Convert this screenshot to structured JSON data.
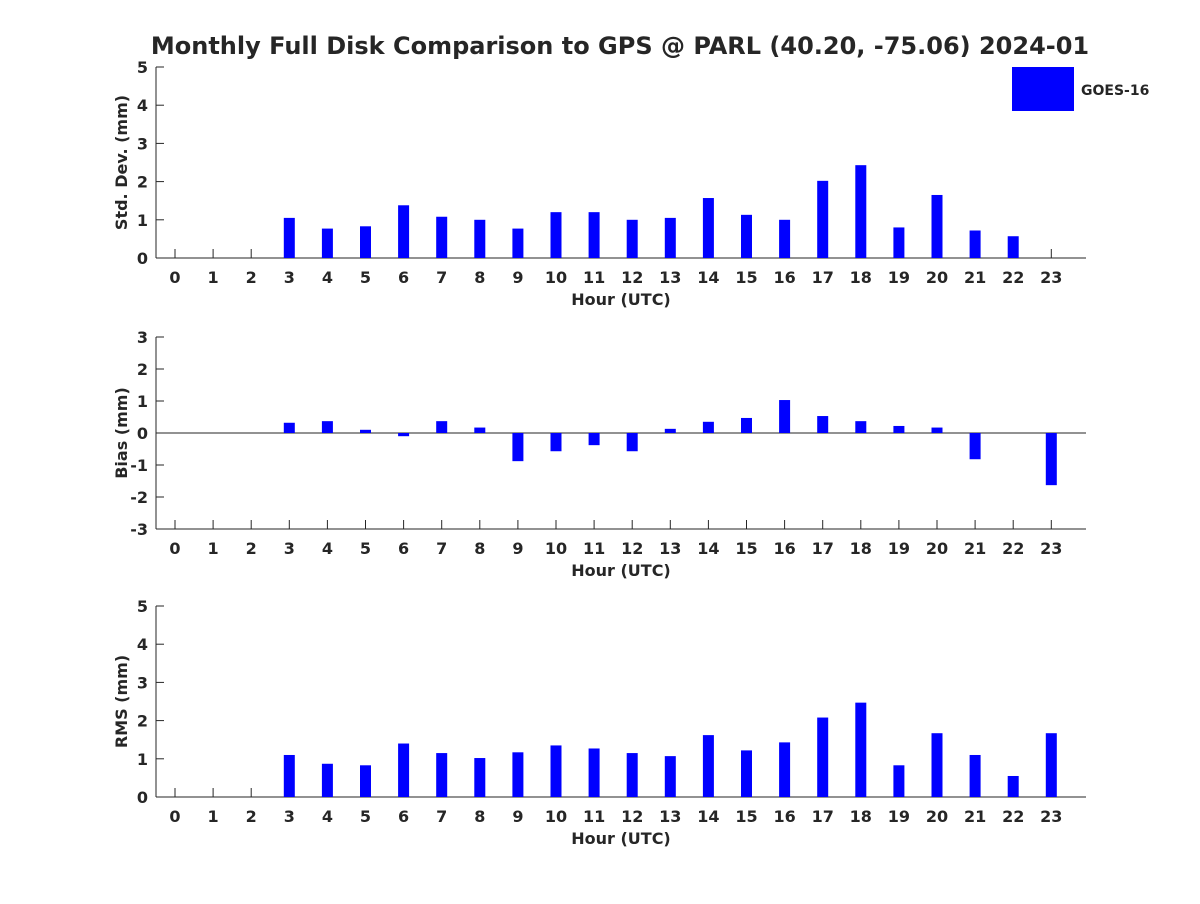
{
  "title": "Monthly Full Disk Comparison to GPS @ PARL (40.20, -75.06) 2024-01",
  "legend": {
    "label": "GOES-16",
    "color": "#0000ff",
    "placement": "top-right"
  },
  "chart_data": [
    {
      "type": "bar",
      "xlabel": "Hour (UTC)",
      "ylabel": "Std. Dev. (mm)",
      "categories": [
        "0",
        "1",
        "2",
        "3",
        "4",
        "5",
        "6",
        "7",
        "8",
        "9",
        "10",
        "11",
        "12",
        "13",
        "14",
        "15",
        "16",
        "17",
        "18",
        "19",
        "20",
        "21",
        "22",
        "23"
      ],
      "ylim": [
        0,
        5
      ],
      "yticks": [
        "0",
        "1",
        "2",
        "3",
        "4",
        "5"
      ],
      "series": [
        {
          "name": "GOES-16",
          "color": "#0000ff",
          "values": [
            null,
            null,
            null,
            1.05,
            0.77,
            0.83,
            1.38,
            1.08,
            1.0,
            0.77,
            1.2,
            1.2,
            1.0,
            1.05,
            1.57,
            1.13,
            1.0,
            2.02,
            2.43,
            0.8,
            1.65,
            0.72,
            0.57,
            null
          ]
        }
      ]
    },
    {
      "type": "bar",
      "xlabel": "Hour (UTC)",
      "ylabel": "Bias (mm)",
      "categories": [
        "0",
        "1",
        "2",
        "3",
        "4",
        "5",
        "6",
        "7",
        "8",
        "9",
        "10",
        "11",
        "12",
        "13",
        "14",
        "15",
        "16",
        "17",
        "18",
        "19",
        "20",
        "21",
        "22",
        "23"
      ],
      "ylim": [
        -3,
        3
      ],
      "yticks": [
        "-3",
        "-2",
        "-1",
        "0",
        "1",
        "2",
        "3"
      ],
      "series": [
        {
          "name": "GOES-16",
          "color": "#0000ff",
          "values": [
            null,
            null,
            null,
            0.32,
            0.37,
            0.1,
            -0.1,
            0.37,
            0.17,
            -0.88,
            -0.57,
            -0.38,
            -0.57,
            0.13,
            0.35,
            0.47,
            1.03,
            0.53,
            0.37,
            0.22,
            0.17,
            -0.82,
            null,
            -1.63
          ]
        }
      ]
    },
    {
      "type": "bar",
      "xlabel": "Hour (UTC)",
      "ylabel": "RMS (mm)",
      "categories": [
        "0",
        "1",
        "2",
        "3",
        "4",
        "5",
        "6",
        "7",
        "8",
        "9",
        "10",
        "11",
        "12",
        "13",
        "14",
        "15",
        "16",
        "17",
        "18",
        "19",
        "20",
        "21",
        "22",
        "23"
      ],
      "ylim": [
        0,
        5
      ],
      "yticks": [
        "0",
        "1",
        "2",
        "3",
        "4",
        "5"
      ],
      "series": [
        {
          "name": "GOES-16",
          "color": "#0000ff",
          "values": [
            null,
            null,
            null,
            1.1,
            0.87,
            0.83,
            1.4,
            1.15,
            1.02,
            1.17,
            1.35,
            1.27,
            1.15,
            1.07,
            1.62,
            1.22,
            1.43,
            2.08,
            2.47,
            0.83,
            1.67,
            1.1,
            0.55,
            1.67
          ]
        }
      ]
    }
  ]
}
